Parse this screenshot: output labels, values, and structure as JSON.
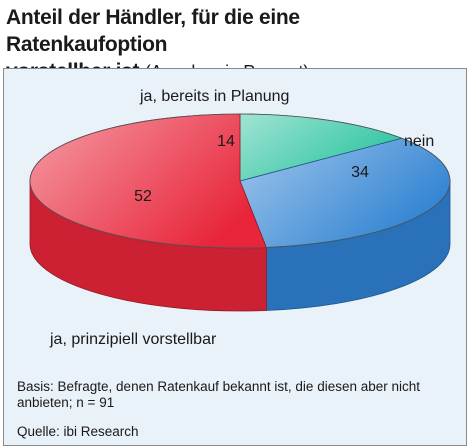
{
  "header": {
    "title_line1": "Anteil der Händler, für die eine Ratenkaufoption",
    "title_line2": "vorstellbar ist",
    "subtitle": "(Angaben in Prozent)"
  },
  "chart_data": {
    "type": "pie",
    "style": "3d",
    "categories": [
      "ja, bereits in Planung",
      "nein",
      "ja, prinzipiell vorstellbar"
    ],
    "values": [
      14,
      34,
      52
    ],
    "colors": [
      "#2cc4a0",
      "#2f82d2",
      "#e8253a"
    ]
  },
  "footer": {
    "basis": "Basis: Befragte, denen Ratenkauf bekannt ist, die diesen aber nicht anbieten; n = 91",
    "source": "Quelle: ibi Research"
  }
}
